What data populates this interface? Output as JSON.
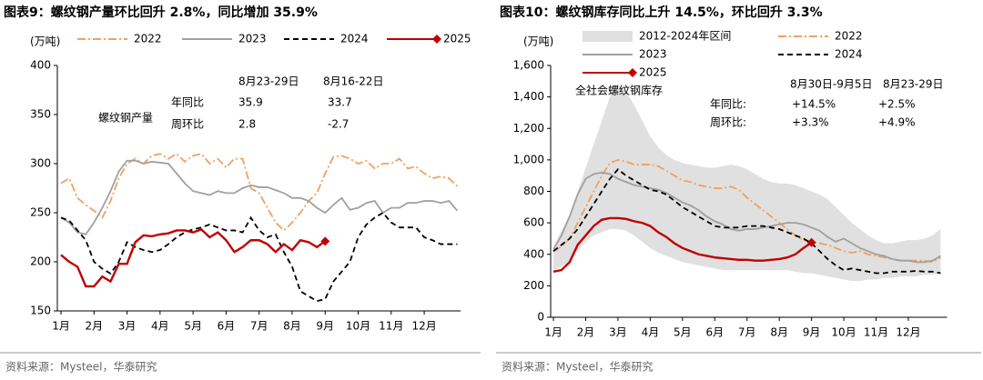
{
  "chart_data": [
    {
      "type": "line",
      "title": "图表9：螺纹钢产量环比回升 2.8%，同比增加 35.9%",
      "y_label": "(万吨)",
      "source": "资料来源：Mysteel，华泰研究",
      "x": [
        1,
        1.25,
        1.5,
        1.75,
        2,
        2.25,
        2.5,
        2.75,
        3,
        3.25,
        3.5,
        3.75,
        4,
        4.25,
        4.5,
        4.75,
        5,
        5.25,
        5.5,
        5.75,
        6,
        6.25,
        6.5,
        6.75,
        7,
        7.25,
        7.5,
        7.75,
        8,
        8.25,
        8.5,
        8.75,
        9,
        9.25,
        9.5,
        9.75,
        10,
        10.25,
        10.5,
        10.75,
        11,
        11.25,
        11.5,
        11.75,
        12,
        12.25,
        12.5,
        12.75,
        13
      ],
      "xlim": [
        0.9,
        13.1
      ],
      "xticks": [
        {
          "value": 1,
          "label": "1月"
        },
        {
          "value": 2,
          "label": "2月"
        },
        {
          "value": 3,
          "label": "3月"
        },
        {
          "value": 4,
          "label": "4月"
        },
        {
          "value": 5,
          "label": "5月"
        },
        {
          "value": 6,
          "label": "6月"
        },
        {
          "value": 7,
          "label": "7月"
        },
        {
          "value": 8,
          "label": "8月"
        },
        {
          "value": 9,
          "label": "9月"
        },
        {
          "value": 10,
          "label": "10月"
        },
        {
          "value": 11,
          "label": "11月"
        },
        {
          "value": 12,
          "label": "12月"
        }
      ],
      "ylim": [
        150,
        400
      ],
      "yticks": [
        150,
        200,
        250,
        300,
        350,
        400
      ],
      "series": [
        {
          "name": "2022",
          "color": "#f0a060",
          "dash": "dashdot",
          "values": [
            280,
            285,
            265,
            258,
            252,
            245,
            262,
            285,
            300,
            305,
            300,
            308,
            310,
            305,
            310,
            302,
            308,
            310,
            300,
            305,
            296,
            305,
            305,
            275,
            270,
            255,
            240,
            232,
            240,
            250,
            262,
            270,
            290,
            307,
            308,
            305,
            300,
            303,
            295,
            300,
            300,
            305,
            295,
            297,
            290,
            285,
            287,
            285,
            277
          ]
        },
        {
          "name": "2023",
          "color": "#a0a0a0",
          "dash": "solid",
          "values": [
            245,
            240,
            230,
            228,
            240,
            255,
            272,
            292,
            303,
            303,
            300,
            302,
            301,
            300,
            290,
            280,
            272,
            270,
            268,
            272,
            270,
            270,
            275,
            278,
            276,
            276,
            273,
            270,
            265,
            265,
            262,
            255,
            250,
            258,
            265,
            253,
            255,
            260,
            262,
            250,
            255,
            255,
            260,
            260,
            262,
            262,
            260,
            262,
            252
          ]
        },
        {
          "name": "2024",
          "color": "#000000",
          "dash": "dash",
          "values": [
            245,
            242,
            232,
            222,
            200,
            193,
            188,
            200,
            220,
            215,
            212,
            210,
            212,
            218,
            225,
            230,
            233,
            235,
            238,
            235,
            232,
            232,
            230,
            245,
            232,
            225,
            228,
            210,
            195,
            170,
            165,
            160,
            162,
            180,
            190,
            200,
            225,
            238,
            245,
            250,
            240,
            235,
            235,
            235,
            225,
            222,
            218,
            218,
            218
          ]
        },
        {
          "name": "2025",
          "color": "#c00000",
          "dash": "solid",
          "marker": "diamond",
          "values": [
            207,
            200,
            195,
            175,
            175,
            185,
            180,
            198,
            198,
            220,
            227,
            226,
            228,
            229,
            232,
            232,
            230,
            233,
            225,
            230,
            222,
            210,
            215,
            222,
            222,
            218,
            210,
            218,
            212,
            222,
            220,
            215,
            221,
            null,
            null,
            null,
            null,
            null,
            null,
            null,
            null,
            null,
            null,
            null,
            null,
            null,
            null,
            null,
            null
          ]
        }
      ],
      "annotation": {
        "title": "螺纹钢产量",
        "columns": [
          "8月23-29日",
          "8月16-22日"
        ],
        "rows": [
          {
            "label": "年同比",
            "values": [
              "35.9",
              "33.7"
            ]
          },
          {
            "label": "周环比",
            "values": [
              "2.8",
              "-2.7"
            ]
          }
        ]
      }
    },
    {
      "type": "line",
      "title": "图表10：螺纹钢库存同比上升 14.5%，环比回升 3.3%",
      "y_label": "(万吨)",
      "source": "资料来源：Mysteel，华泰研究",
      "x": [
        1,
        1.25,
        1.5,
        1.75,
        2,
        2.25,
        2.5,
        2.75,
        3,
        3.25,
        3.5,
        3.75,
        4,
        4.25,
        4.5,
        4.75,
        5,
        5.25,
        5.5,
        5.75,
        6,
        6.25,
        6.5,
        6.75,
        7,
        7.25,
        7.5,
        7.75,
        8,
        8.25,
        8.5,
        8.75,
        9,
        9.25,
        9.5,
        9.75,
        10,
        10.25,
        10.5,
        10.75,
        11,
        11.25,
        11.5,
        11.75,
        12,
        12.25,
        12.5,
        12.75,
        13
      ],
      "xlim": [
        0.9,
        13.2
      ],
      "xticks": [
        {
          "value": 1,
          "label": "1月"
        },
        {
          "value": 2,
          "label": "2月"
        },
        {
          "value": 3,
          "label": "3月"
        },
        {
          "value": 4,
          "label": "4月"
        },
        {
          "value": 5,
          "label": "5月"
        },
        {
          "value": 6,
          "label": "6月"
        },
        {
          "value": 7,
          "label": "7月"
        },
        {
          "value": 8,
          "label": "8月"
        },
        {
          "value": 9,
          "label": "9月"
        },
        {
          "value": 10,
          "label": "10月"
        },
        {
          "value": 11,
          "label": "11月"
        },
        {
          "value": 12,
          "label": "12月"
        }
      ],
      "ylim": [
        0,
        1600
      ],
      "yticks": [
        0,
        200,
        400,
        600,
        800,
        {
          "value": 1000,
          "label": "1,000"
        },
        {
          "value": 1200,
          "label": "1,200"
        },
        {
          "value": 1400,
          "label": "1,400"
        },
        {
          "value": 1600,
          "label": "1,600"
        }
      ],
      "series": [
        {
          "name": "2012-2024年区间",
          "color": "#e0e0e0",
          "dash": "band",
          "high": [
            450,
            550,
            650,
            800,
            950,
            1100,
            1250,
            1400,
            1480,
            1430,
            1350,
            1250,
            1150,
            1080,
            1030,
            1000,
            980,
            970,
            960,
            950,
            950,
            960,
            970,
            960,
            940,
            910,
            880,
            860,
            850,
            850,
            840,
            820,
            800,
            780,
            750,
            700,
            650,
            600,
            560,
            520,
            490,
            470,
            470,
            480,
            490,
            490,
            500,
            520,
            560
          ],
          "low": [
            300,
            320,
            360,
            420,
            480,
            520,
            540,
            560,
            560,
            550,
            520,
            480,
            440,
            410,
            390,
            370,
            350,
            340,
            330,
            320,
            310,
            300,
            300,
            300,
            300,
            300,
            300,
            300,
            300,
            300,
            290,
            280,
            280,
            270,
            260,
            250,
            240,
            230,
            230,
            240,
            240,
            250,
            250,
            260,
            260,
            260,
            270,
            270,
            280
          ]
        },
        {
          "name": "2022",
          "color": "#f0a060",
          "dash": "dashdot",
          "values": [
            420,
            450,
            500,
            600,
            700,
            800,
            900,
            980,
            1000,
            990,
            970,
            970,
            970,
            960,
            930,
            900,
            870,
            860,
            840,
            830,
            820,
            820,
            830,
            810,
            760,
            720,
            680,
            640,
            600,
            560,
            520,
            490,
            480,
            470,
            460,
            440,
            420,
            410,
            420,
            400,
            390,
            380,
            370,
            360,
            360,
            360,
            360,
            350,
            380
          ]
        },
        {
          "name": "2023",
          "color": "#a0a0a0",
          "dash": "solid",
          "values": [
            430,
            520,
            640,
            780,
            880,
            910,
            920,
            910,
            880,
            860,
            840,
            830,
            820,
            810,
            790,
            760,
            730,
            710,
            680,
            640,
            610,
            590,
            560,
            550,
            560,
            560,
            570,
            580,
            590,
            600,
            600,
            590,
            570,
            550,
            510,
            480,
            500,
            470,
            440,
            420,
            400,
            390,
            370,
            360,
            360,
            350,
            350,
            360,
            390
          ]
        },
        {
          "name": "2024",
          "color": "#000000",
          "dash": "dash",
          "values": [
            420,
            460,
            500,
            560,
            640,
            720,
            800,
            880,
            940,
            900,
            870,
            840,
            810,
            800,
            780,
            740,
            700,
            670,
            640,
            610,
            580,
            570,
            570,
            570,
            580,
            580,
            580,
            570,
            560,
            540,
            520,
            500,
            470,
            420,
            370,
            330,
            300,
            310,
            300,
            290,
            280,
            280,
            290,
            290,
            290,
            295,
            290,
            290,
            280
          ]
        },
        {
          "name": "2025",
          "color": "#c00000",
          "dash": "solid",
          "marker": "diamond",
          "values": [
            290,
            300,
            350,
            460,
            520,
            580,
            620,
            630,
            630,
            625,
            610,
            600,
            580,
            540,
            510,
            470,
            440,
            420,
            400,
            390,
            380,
            375,
            370,
            365,
            365,
            360,
            360,
            365,
            370,
            380,
            400,
            440,
            475,
            null,
            null,
            null,
            null,
            null,
            null,
            null,
            null,
            null,
            null,
            null,
            null,
            null,
            null,
            null,
            null
          ]
        }
      ],
      "annotation": {
        "title": "全社会螺纹钢库存",
        "columns": [
          "8月30日-9月5日",
          "8月23-29日"
        ],
        "rows": [
          {
            "label": "年同比:",
            "values": [
              "+14.5%",
              "+2.5%"
            ]
          },
          {
            "label": "周环比:",
            "values": [
              "+3.3%",
              "+4.9%"
            ]
          }
        ]
      }
    }
  ]
}
